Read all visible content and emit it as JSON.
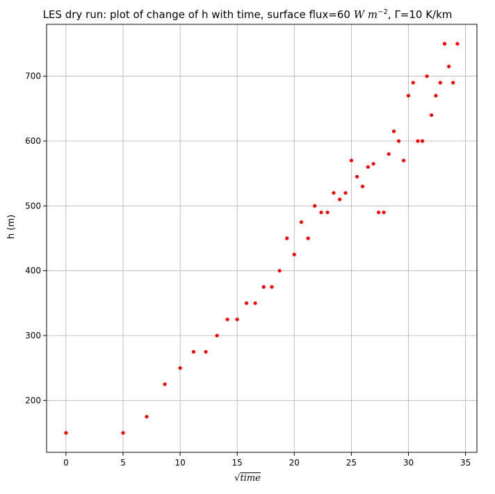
{
  "chart_data": {
    "type": "scatter",
    "title_prefix": "LES dry run: plot of change of h with time, surface flux=60 ",
    "title_unit": "W m",
    "title_exp": "−2",
    "title_suffix": ", Γ=10 K/km",
    "xlabel_prefix": "√",
    "xlabel_var": "time",
    "ylabel": "h (m)",
    "xlim": [
      -1.7,
      36
    ],
    "ylim": [
      120,
      780
    ],
    "xticks": [
      0,
      5,
      10,
      15,
      20,
      25,
      30,
      35
    ],
    "yticks": [
      200,
      300,
      400,
      500,
      600,
      700
    ],
    "grid": true,
    "marker_color": "#ff0000",
    "series": [
      {
        "points": [
          [
            0,
            150
          ],
          [
            5,
            150
          ],
          [
            7.07,
            175
          ],
          [
            8.66,
            225
          ],
          [
            10,
            250
          ],
          [
            11.18,
            275
          ],
          [
            12.25,
            275
          ],
          [
            13.23,
            300
          ],
          [
            14.14,
            325
          ],
          [
            15,
            325
          ],
          [
            15.81,
            350
          ],
          [
            16.58,
            350
          ],
          [
            17.32,
            375
          ],
          [
            18.03,
            375
          ],
          [
            18.71,
            400
          ],
          [
            19.36,
            450
          ],
          [
            20,
            425
          ],
          [
            20.62,
            475
          ],
          [
            21.21,
            450
          ],
          [
            21.79,
            500
          ],
          [
            22.36,
            490
          ],
          [
            22.91,
            490
          ],
          [
            23.45,
            520
          ],
          [
            23.98,
            510
          ],
          [
            24.49,
            520
          ],
          [
            25,
            570
          ],
          [
            25.5,
            545
          ],
          [
            25.98,
            530
          ],
          [
            26.46,
            560
          ],
          [
            26.93,
            565
          ],
          [
            27.39,
            490
          ],
          [
            27.84,
            490
          ],
          [
            28.28,
            580
          ],
          [
            28.72,
            615
          ],
          [
            29.15,
            600
          ],
          [
            29.58,
            570
          ],
          [
            30,
            670
          ],
          [
            30.41,
            690
          ],
          [
            30.82,
            600
          ],
          [
            31.22,
            600
          ],
          [
            31.62,
            700
          ],
          [
            32.02,
            640
          ],
          [
            32.4,
            670
          ],
          [
            32.79,
            690
          ],
          [
            33.17,
            750
          ],
          [
            33.54,
            715
          ],
          [
            33.91,
            690
          ],
          [
            34.29,
            750
          ]
        ]
      }
    ]
  }
}
